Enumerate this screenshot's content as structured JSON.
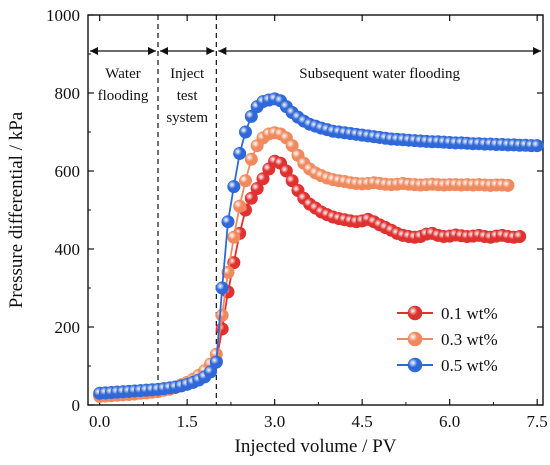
{
  "chart_data": {
    "type": "scatter",
    "title": "",
    "xlabel": "Injected volume / PV",
    "ylabel": "Pressure differential / kPa",
    "xlim": [
      -0.2,
      7.6
    ],
    "ylim": [
      0,
      1000
    ],
    "x_ticks": [
      0.0,
      1.5,
      3.0,
      4.5,
      6.0,
      7.5
    ],
    "x_tick_labels": [
      "0.0",
      "1.5",
      "3.0",
      "4.5",
      "6.0",
      "7.5"
    ],
    "y_ticks": [
      0,
      200,
      400,
      600,
      800,
      1000
    ],
    "y_tick_labels": [
      "0",
      "200",
      "400",
      "600",
      "800",
      "1000"
    ],
    "grid": false,
    "legend_position": "bottom-right",
    "stage_dividers": [
      1.0,
      2.0
    ],
    "stages": [
      {
        "label_lines": [
          "Water",
          "flooding"
        ],
        "x_start": -0.2,
        "x_end": 1.0
      },
      {
        "label_lines": [
          "Inject",
          "test",
          "system"
        ],
        "x_start": 1.0,
        "x_end": 2.0
      },
      {
        "label_lines": [
          "Subsequent water flooding"
        ],
        "x_start": 2.0,
        "x_end": 7.6
      }
    ],
    "series": [
      {
        "name": "0.1 wt%",
        "color": "#e03030",
        "x": [
          0.0,
          0.1,
          0.2,
          0.3,
          0.4,
          0.5,
          0.6,
          0.7,
          0.8,
          0.9,
          1.0,
          1.1,
          1.2,
          1.3,
          1.4,
          1.5,
          1.6,
          1.7,
          1.8,
          1.9,
          2.0,
          2.1,
          2.2,
          2.3,
          2.4,
          2.5,
          2.6,
          2.7,
          2.8,
          2.9,
          3.0,
          3.1,
          3.2,
          3.3,
          3.4,
          3.5,
          3.6,
          3.7,
          3.8,
          3.9,
          4.0,
          4.1,
          4.2,
          4.3,
          4.4,
          4.5,
          4.6,
          4.7,
          4.8,
          4.9,
          5.0,
          5.1,
          5.2,
          5.3,
          5.4,
          5.5,
          5.6,
          5.7,
          5.8,
          5.9,
          6.0,
          6.1,
          6.2,
          6.3,
          6.4,
          6.5,
          6.6,
          6.7,
          6.8,
          6.9,
          7.0,
          7.1,
          7.2
        ],
        "y": [
          25,
          26,
          27,
          28,
          29,
          30,
          31,
          32,
          33,
          34,
          35,
          38,
          41,
          45,
          50,
          56,
          63,
          71,
          82,
          95,
          112,
          195,
          290,
          365,
          440,
          500,
          530,
          555,
          580,
          605,
          625,
          620,
          600,
          575,
          550,
          530,
          515,
          505,
          495,
          488,
          482,
          478,
          475,
          472,
          470,
          472,
          476,
          470,
          462,
          455,
          448,
          440,
          435,
          432,
          430,
          432,
          438,
          440,
          435,
          432,
          433,
          436,
          434,
          432,
          433,
          435,
          432,
          430,
          433,
          435,
          432,
          430,
          432
        ]
      },
      {
        "name": "0.3 wt%",
        "color": "#f08a5e",
        "x": [
          0.0,
          0.1,
          0.2,
          0.3,
          0.4,
          0.5,
          0.6,
          0.7,
          0.8,
          0.9,
          1.0,
          1.1,
          1.2,
          1.3,
          1.4,
          1.5,
          1.6,
          1.7,
          1.8,
          1.9,
          2.0,
          2.1,
          2.2,
          2.3,
          2.4,
          2.5,
          2.6,
          2.7,
          2.8,
          2.9,
          3.0,
          3.1,
          3.2,
          3.3,
          3.4,
          3.5,
          3.6,
          3.7,
          3.8,
          3.9,
          4.0,
          4.1,
          4.2,
          4.3,
          4.4,
          4.5,
          4.6,
          4.7,
          4.8,
          4.9,
          5.0,
          5.1,
          5.2,
          5.3,
          5.4,
          5.5,
          5.6,
          5.7,
          5.8,
          5.9,
          6.0,
          6.1,
          6.2,
          6.3,
          6.4,
          6.5,
          6.6,
          6.7,
          6.8,
          6.9,
          7.0
        ],
        "y": [
          22,
          23,
          24,
          25,
          26,
          27,
          28,
          30,
          31,
          33,
          35,
          38,
          42,
          46,
          52,
          58,
          66,
          76,
          88,
          105,
          130,
          230,
          340,
          430,
          510,
          575,
          630,
          665,
          685,
          695,
          698,
          695,
          685,
          665,
          640,
          620,
          605,
          595,
          588,
          582,
          578,
          575,
          573,
          570,
          568,
          567,
          568,
          570,
          568,
          566,
          565,
          566,
          568,
          566,
          565,
          564,
          565,
          566,
          565,
          564,
          565,
          565,
          564,
          565,
          564,
          565,
          564,
          563,
          564,
          564,
          563
        ]
      },
      {
        "name": "0.5 wt%",
        "color": "#2f68d8",
        "x": [
          0.0,
          0.1,
          0.2,
          0.3,
          0.4,
          0.5,
          0.6,
          0.7,
          0.8,
          0.9,
          1.0,
          1.1,
          1.2,
          1.3,
          1.4,
          1.5,
          1.6,
          1.7,
          1.8,
          1.9,
          2.0,
          2.1,
          2.2,
          2.3,
          2.4,
          2.5,
          2.6,
          2.7,
          2.8,
          2.9,
          3.0,
          3.1,
          3.2,
          3.3,
          3.4,
          3.5,
          3.6,
          3.7,
          3.8,
          3.9,
          4.0,
          4.1,
          4.2,
          4.3,
          4.4,
          4.5,
          4.6,
          4.7,
          4.8,
          4.9,
          5.0,
          5.1,
          5.2,
          5.3,
          5.4,
          5.5,
          5.6,
          5.7,
          5.8,
          5.9,
          6.0,
          6.1,
          6.2,
          6.3,
          6.4,
          6.5,
          6.6,
          6.7,
          6.8,
          6.9,
          7.0,
          7.1,
          7.2,
          7.3,
          7.4,
          7.5
        ],
        "y": [
          30,
          31,
          32,
          33,
          34,
          35,
          36,
          37,
          38,
          39,
          40,
          42,
          44,
          46,
          49,
          53,
          58,
          64,
          72,
          85,
          110,
          300,
          470,
          560,
          645,
          700,
          740,
          765,
          778,
          782,
          785,
          780,
          765,
          750,
          738,
          728,
          720,
          715,
          710,
          706,
          702,
          700,
          698,
          696,
          694,
          692,
          690,
          688,
          686,
          684,
          682,
          681,
          680,
          679,
          678,
          677,
          676,
          675,
          675,
          674,
          673,
          672,
          672,
          671,
          670,
          670,
          669,
          669,
          668,
          668,
          667,
          667,
          666,
          666,
          665,
          665
        ]
      }
    ]
  }
}
